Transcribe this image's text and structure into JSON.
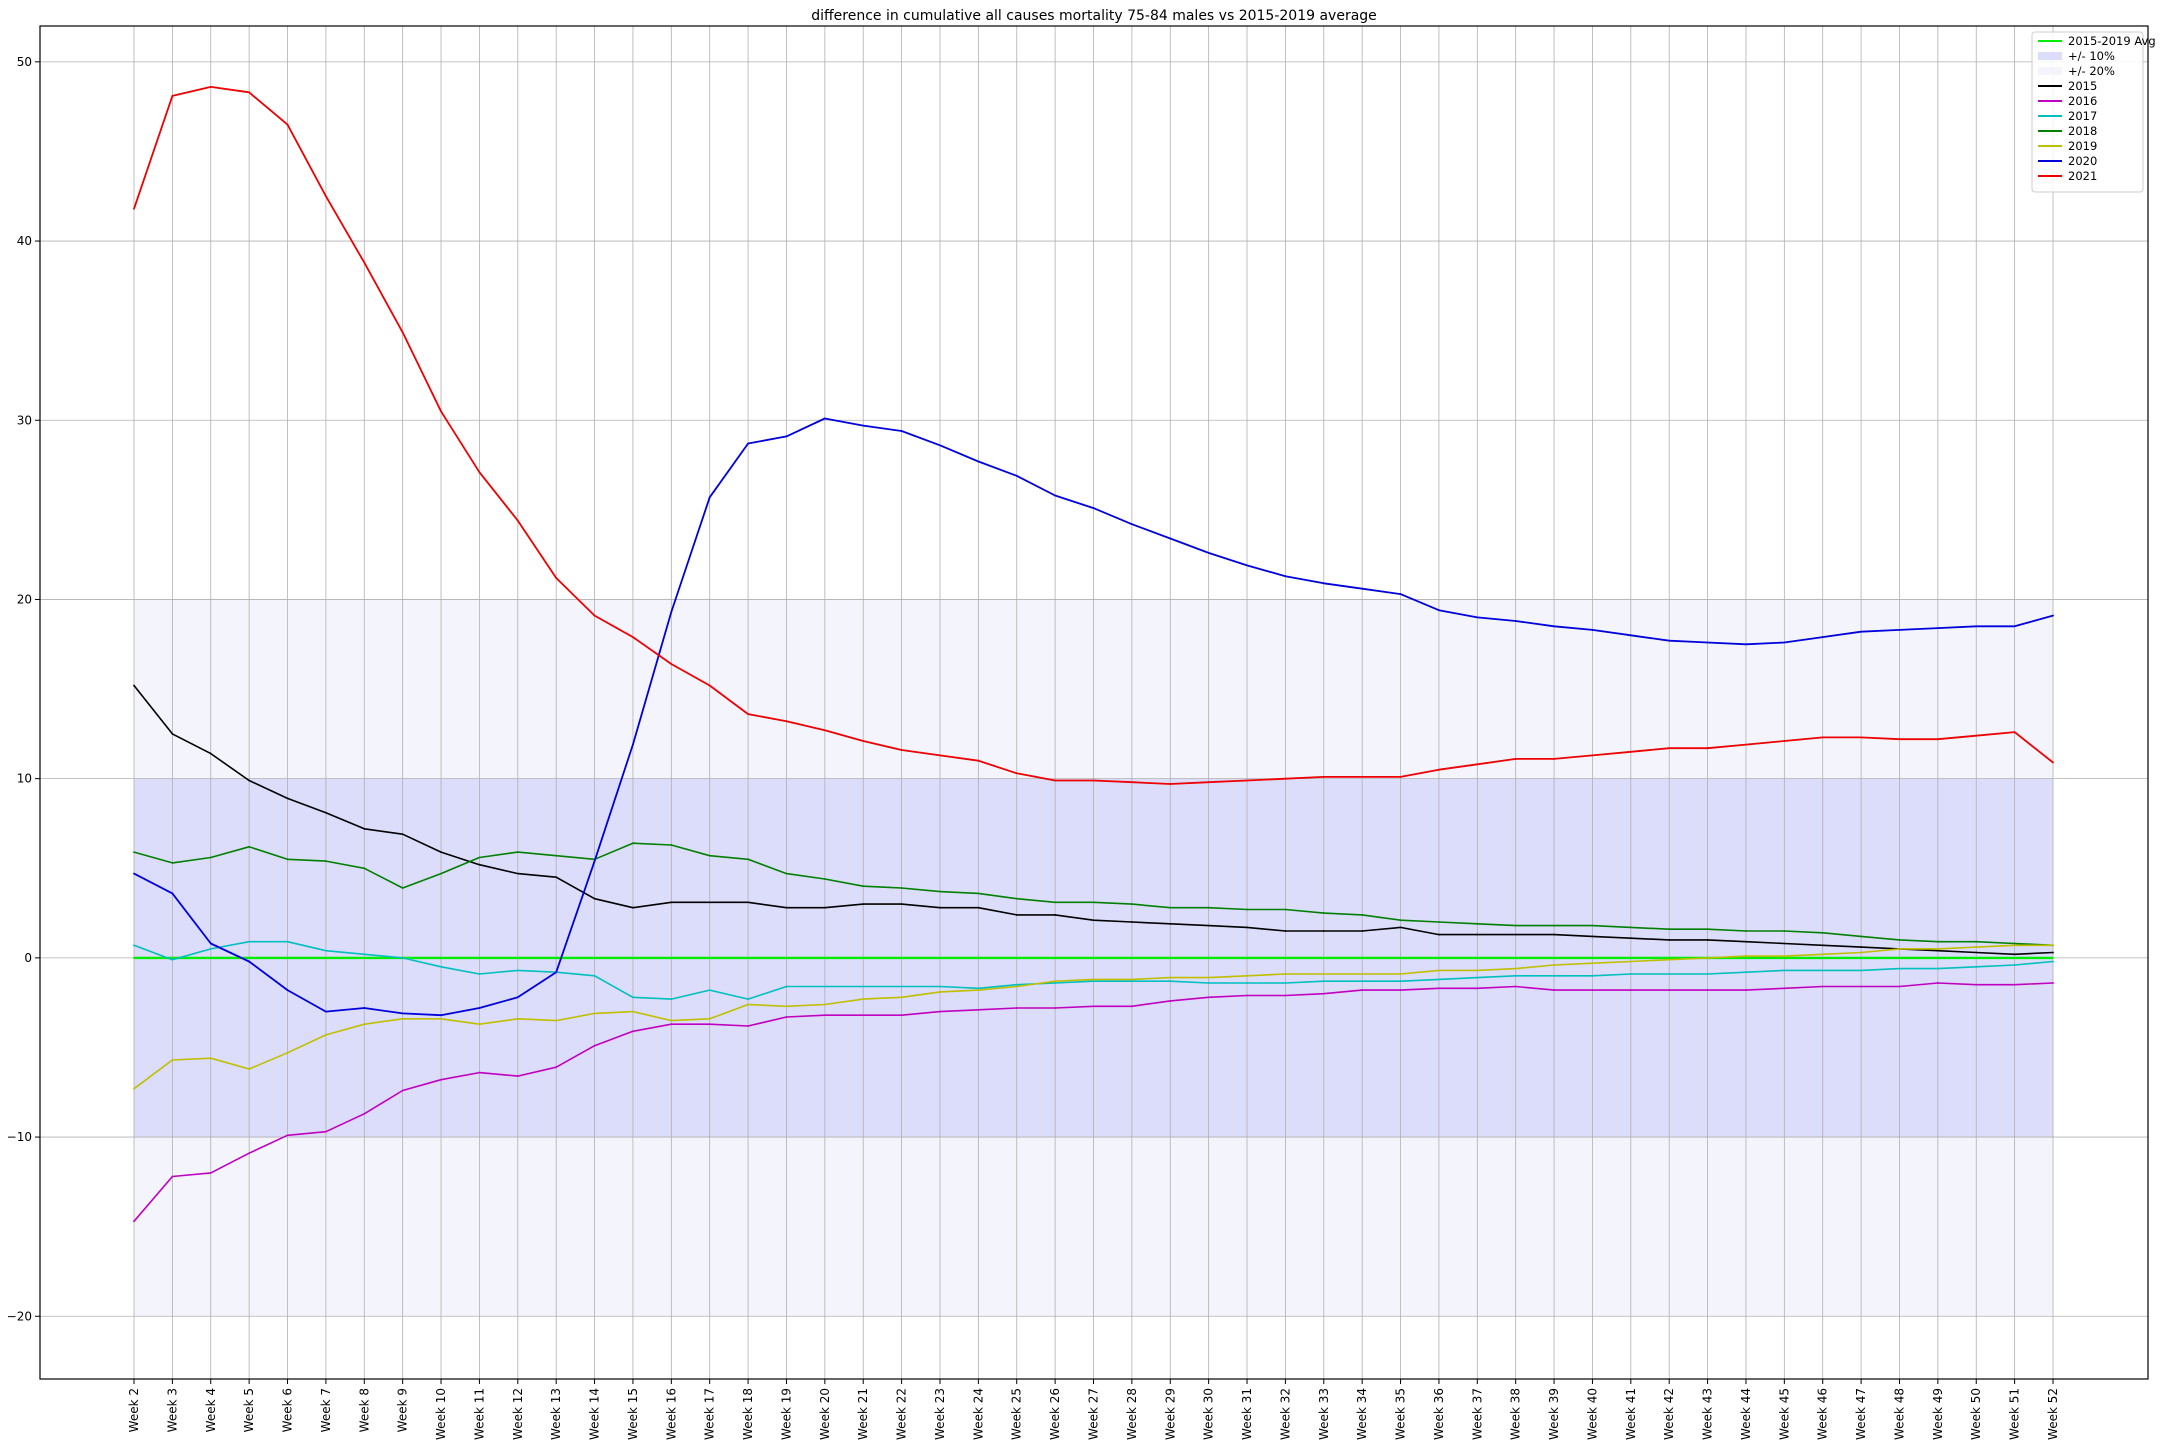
{
  "chart_data": {
    "type": "line",
    "title": "difference in cumulative all causes mortality 75-84 males vs 2015-2019 average",
    "xlabel": "",
    "ylabel": "",
    "ylim": [
      -23.5,
      52
    ],
    "yticks": [
      -20,
      -10,
      0,
      10,
      20,
      30,
      40,
      50
    ],
    "grid": true,
    "legend_position": "top-right",
    "categories": [
      "Week 2",
      "Week 3",
      "Week 4",
      "Week 5",
      "Week 6",
      "Week 7",
      "Week 8",
      "Week 9",
      "Week 10",
      "Week 11",
      "Week 12",
      "Week 13",
      "Week 14",
      "Week 15",
      "Week 16",
      "Week 17",
      "Week 18",
      "Week 19",
      "Week 20",
      "Week 21",
      "Week 22",
      "Week 23",
      "Week 24",
      "Week 25",
      "Week 26",
      "Week 27",
      "Week 28",
      "Week 29",
      "Week 30",
      "Week 31",
      "Week 32",
      "Week 33",
      "Week 34",
      "Week 35",
      "Week 36",
      "Week 37",
      "Week 38",
      "Week 39",
      "Week 40",
      "Week 41",
      "Week 42",
      "Week 43",
      "Week 44",
      "Week 45",
      "Week 46",
      "Week 47",
      "Week 48",
      "Week 49",
      "Week 50",
      "Week 51",
      "Week 52"
    ],
    "bands": [
      {
        "name": "+/- 10%",
        "range": [
          -10,
          10
        ],
        "color": "#dcdcfb"
      },
      {
        "name": "+/- 20%",
        "range": [
          -20,
          20
        ],
        "color": "#f4f4fd"
      }
    ],
    "series": [
      {
        "name": "2015-2019 Avg",
        "color": "#00ee00",
        "width": 2.4,
        "values": [
          0,
          0,
          0,
          0,
          0,
          0,
          0,
          0,
          0,
          0,
          0,
          0,
          0,
          0,
          0,
          0,
          0,
          0,
          0,
          0,
          0,
          0,
          0,
          0,
          0,
          0,
          0,
          0,
          0,
          0,
          0,
          0,
          0,
          0,
          0,
          0,
          0,
          0,
          0,
          0,
          0,
          0,
          0,
          0,
          0,
          0,
          0,
          0,
          0,
          0,
          0
        ]
      },
      {
        "name": "2015",
        "color": "#000000",
        "width": 1.6,
        "values": [
          15.2,
          12.5,
          11.4,
          9.9,
          8.9,
          8.1,
          7.2,
          6.9,
          5.9,
          5.2,
          4.7,
          4.5,
          3.3,
          2.8,
          3.1,
          3.1,
          3.1,
          2.8,
          2.8,
          3.0,
          3.0,
          2.8,
          2.8,
          2.4,
          2.4,
          2.1,
          2.0,
          1.9,
          1.8,
          1.7,
          1.5,
          1.5,
          1.5,
          1.7,
          1.3,
          1.3,
          1.3,
          1.3,
          1.2,
          1.1,
          1.0,
          1.0,
          0.9,
          0.8,
          0.7,
          0.6,
          0.5,
          0.4,
          0.3,
          0.2,
          0.3
        ]
      },
      {
        "name": "2016",
        "color": "#c000c0",
        "width": 1.6,
        "values": [
          -14.7,
          -12.2,
          -12.0,
          -10.9,
          -9.9,
          -9.7,
          -8.7,
          -7.4,
          -6.8,
          -6.4,
          -6.6,
          -6.1,
          -4.9,
          -4.1,
          -3.7,
          -3.7,
          -3.8,
          -3.3,
          -3.2,
          -3.2,
          -3.2,
          -3.0,
          -2.9,
          -2.8,
          -2.8,
          -2.7,
          -2.7,
          -2.4,
          -2.2,
          -2.1,
          -2.1,
          -2.0,
          -1.8,
          -1.8,
          -1.7,
          -1.7,
          -1.6,
          -1.8,
          -1.8,
          -1.8,
          -1.8,
          -1.8,
          -1.8,
          -1.7,
          -1.6,
          -1.6,
          -1.6,
          -1.4,
          -1.5,
          -1.5,
          -1.4
        ]
      },
      {
        "name": "2017",
        "color": "#00bfbf",
        "width": 1.6,
        "values": [
          0.7,
          -0.1,
          0.5,
          0.9,
          0.9,
          0.4,
          0.2,
          0.0,
          -0.5,
          -0.9,
          -0.7,
          -0.8,
          -1.0,
          -2.2,
          -2.3,
          -1.8,
          -2.3,
          -1.6,
          -1.6,
          -1.6,
          -1.6,
          -1.6,
          -1.7,
          -1.5,
          -1.4,
          -1.3,
          -1.3,
          -1.3,
          -1.4,
          -1.4,
          -1.4,
          -1.3,
          -1.3,
          -1.3,
          -1.2,
          -1.1,
          -1.0,
          -1.0,
          -1.0,
          -0.9,
          -0.9,
          -0.9,
          -0.8,
          -0.7,
          -0.7,
          -0.7,
          -0.6,
          -0.6,
          -0.5,
          -0.4,
          -0.2
        ]
      },
      {
        "name": "2018",
        "color": "#008000",
        "width": 1.6,
        "values": [
          5.9,
          5.3,
          5.6,
          6.2,
          5.5,
          5.4,
          5.0,
          3.9,
          4.7,
          5.6,
          5.9,
          5.7,
          5.5,
          6.4,
          6.3,
          5.7,
          5.5,
          4.7,
          4.4,
          4.0,
          3.9,
          3.7,
          3.6,
          3.3,
          3.1,
          3.1,
          3.0,
          2.8,
          2.8,
          2.7,
          2.7,
          2.5,
          2.4,
          2.1,
          2.0,
          1.9,
          1.8,
          1.8,
          1.8,
          1.7,
          1.6,
          1.6,
          1.5,
          1.5,
          1.4,
          1.2,
          1.0,
          0.9,
          0.9,
          0.8,
          0.7
        ]
      },
      {
        "name": "2019",
        "color": "#bfbf00",
        "width": 1.6,
        "values": [
          -7.3,
          -5.7,
          -5.6,
          -6.2,
          -5.3,
          -4.3,
          -3.7,
          -3.4,
          -3.4,
          -3.7,
          -3.4,
          -3.5,
          -3.1,
          -3.0,
          -3.5,
          -3.4,
          -2.6,
          -2.7,
          -2.6,
          -2.3,
          -2.2,
          -1.9,
          -1.8,
          -1.6,
          -1.3,
          -1.2,
          -1.2,
          -1.1,
          -1.1,
          -1.0,
          -0.9,
          -0.9,
          -0.9,
          -0.9,
          -0.7,
          -0.7,
          -0.6,
          -0.4,
          -0.3,
          -0.2,
          -0.1,
          0.0,
          0.1,
          0.1,
          0.2,
          0.3,
          0.5,
          0.5,
          0.6,
          0.7,
          0.7
        ]
      },
      {
        "name": "2020",
        "color": "#0000dd",
        "width": 1.8,
        "values": [
          4.7,
          3.6,
          0.8,
          -0.2,
          -1.8,
          -3.0,
          -2.8,
          -3.1,
          -3.2,
          -2.8,
          -2.2,
          -0.8,
          5.4,
          11.9,
          19.3,
          25.7,
          28.7,
          29.1,
          30.1,
          29.7,
          29.4,
          28.6,
          27.7,
          26.9,
          25.8,
          25.1,
          24.2,
          23.4,
          22.6,
          21.9,
          21.3,
          20.9,
          20.6,
          20.3,
          19.4,
          19.0,
          18.8,
          18.5,
          18.3,
          18.0,
          17.7,
          17.6,
          17.5,
          17.6,
          17.9,
          18.2,
          18.3,
          18.4,
          18.5,
          18.5,
          19.1
        ]
      },
      {
        "name": "2021",
        "color": "#ee0000",
        "width": 1.8,
        "values": [
          41.8,
          48.1,
          48.6,
          48.3,
          46.5,
          42.5,
          38.8,
          34.9,
          30.5,
          27.1,
          24.4,
          21.2,
          19.1,
          17.9,
          16.4,
          15.2,
          13.6,
          13.2,
          12.7,
          12.1,
          11.6,
          11.3,
          11.0,
          10.3,
          9.9,
          9.9,
          9.8,
          9.7,
          9.8,
          9.9,
          10.0,
          10.1,
          10.1,
          10.1,
          10.5,
          10.8,
          11.1,
          11.1,
          11.3,
          11.5,
          11.7,
          11.7,
          11.9,
          12.1,
          12.3,
          12.3,
          12.2,
          12.2,
          12.4,
          12.6,
          10.9
        ]
      }
    ]
  }
}
